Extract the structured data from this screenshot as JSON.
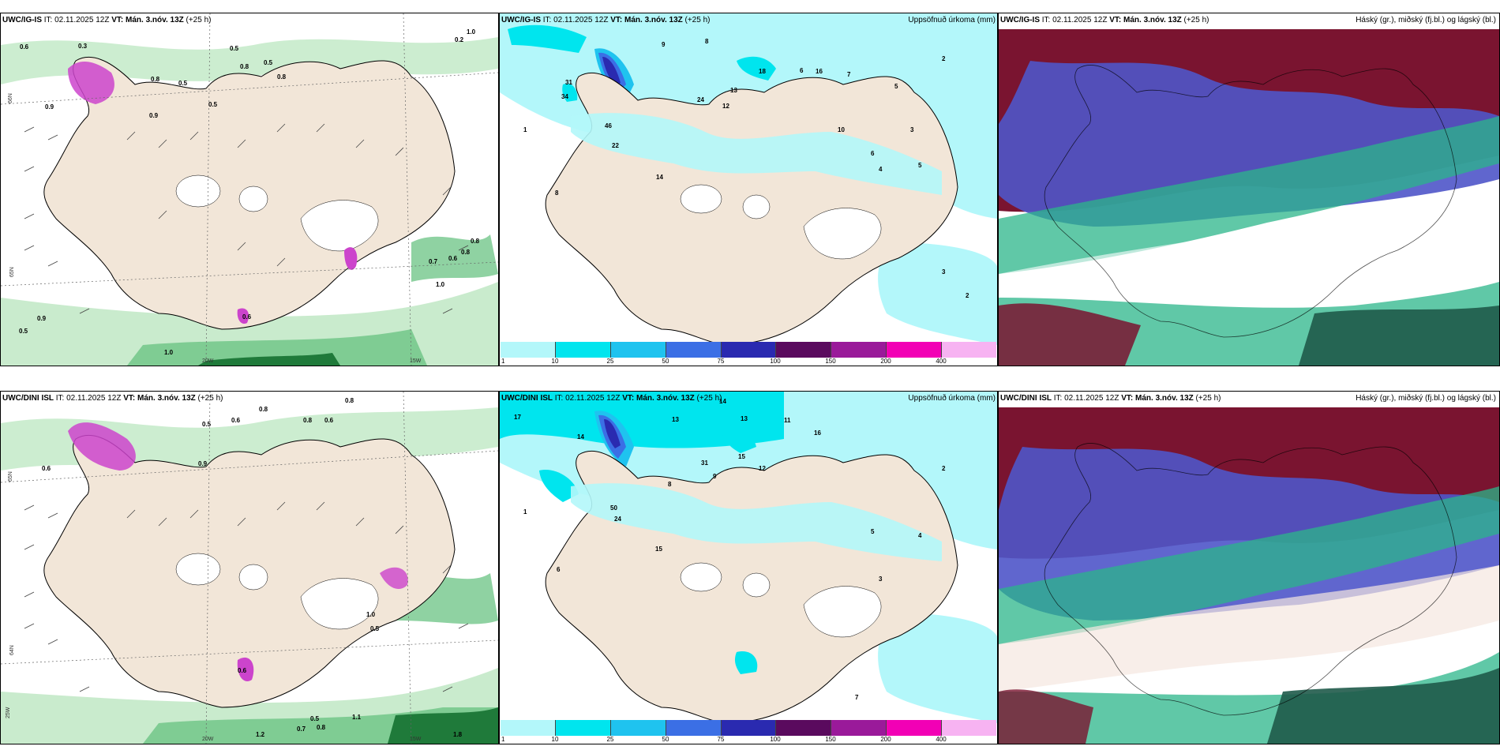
{
  "figure": {
    "common_suffix": "+25 h",
    "rows": [
      {
        "model": "UWC/IG-IS",
        "it_label": "IT:",
        "it_value": "02.11.2025 12Z",
        "vt_label": "VT: Mán. 3.nóv. 13Z",
        "lead": "(+25 h)"
      },
      {
        "model": "UWC/DINI ISL",
        "it_label": "IT:",
        "it_value": "02.11.2025 12Z",
        "vt_label": "VT: Mán. 3.nóv. 13Z",
        "lead": "(+25 h)"
      }
    ],
    "precip_title": "Uppsöfnuð úrkoma (mm)",
    "cloud_title": "Háský (gr.), miðský (fj.bl.) og lágský (bl.)",
    "colorbar": {
      "ticks": [
        "1",
        "10",
        "25",
        "50",
        "75",
        "100",
        "150",
        "200",
        "400"
      ],
      "colors": [
        "#b3f7fa",
        "#00e5ee",
        "#1fc3ef",
        "#3b6fe5",
        "#2a2ab0",
        "#5a0a5e",
        "#9a1a9a",
        "#f200b5",
        "#f7b3f2"
      ]
    },
    "grid_labels": {
      "lat_66": "66N",
      "lat_65": "65N",
      "lat_64": "64N",
      "lon_20": "20W",
      "lon_15": "15W",
      "lon_25": "25W"
    },
    "wind_labels_top": [
      "0.6",
      "0.3",
      "0.5",
      "0.8",
      "0.9",
      "0.5",
      "0.8",
      "0.5",
      "1.0",
      "0.2",
      "0.5",
      "0.8",
      "0.7",
      "0.6",
      "0.9",
      "0.5",
      "1.0",
      "0.9",
      "0.8",
      "1.0",
      "0.6",
      "0.8"
    ],
    "wind_labels_bottom": [
      "0.5",
      "0.6",
      "0.8",
      "0.8",
      "0.6",
      "0.8",
      "0.6",
      "0.9",
      "0.5",
      "1.0",
      "0.5",
      "1.2",
      "0.7",
      "0.8",
      "0.6",
      "1.1",
      "1.8"
    ],
    "precip_values_top": [
      "9",
      "8",
      "6",
      "7",
      "5",
      "2",
      "3",
      "13",
      "12",
      "18",
      "24",
      "16",
      "31",
      "34",
      "46",
      "22",
      "14",
      "10",
      "8",
      "6",
      "5",
      "4",
      "3",
      "2",
      "1"
    ],
    "precip_values_bottom": [
      "17",
      "14",
      "13",
      "14",
      "13",
      "11",
      "16",
      "15",
      "12",
      "31",
      "8",
      "9",
      "50",
      "24",
      "15",
      "6",
      "5",
      "4",
      "3",
      "2",
      "1",
      "7"
    ],
    "colors": {
      "land": "#f2e6d8",
      "sea_precip": "#b3f7fa",
      "green_light": "#bfe8c4",
      "green_mid": "#5fbf7a",
      "green_dark": "#1f7a3a",
      "magenta": "#cc44cc",
      "cloud_high": "#7a1430",
      "cloud_mid": "#4f55c9",
      "cloud_low": "#2bb58a"
    }
  }
}
